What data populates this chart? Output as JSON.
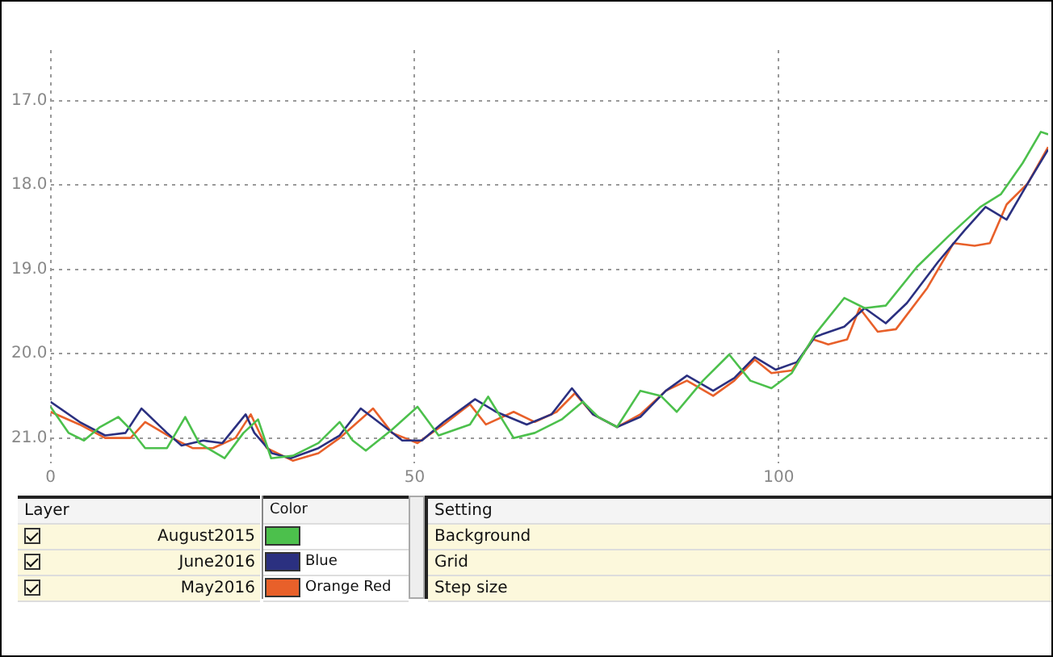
{
  "chart_data": {
    "type": "line",
    "xlim": [
      0,
      137
    ],
    "xticks": [
      0,
      50,
      100
    ],
    "ylim": [
      21.3,
      16.4
    ],
    "yticks": [
      {
        "value": 17,
        "label": "17.0"
      },
      {
        "value": 18,
        "label": "18.0"
      },
      {
        "value": 19,
        "label": "19.0"
      },
      {
        "value": 20,
        "label": "20.0"
      },
      {
        "value": 21,
        "label": "21.0"
      }
    ],
    "grid": true,
    "legend": "bottom",
    "marker": "none",
    "line_style": "solid",
    "annotations": [
      "Layer",
      "Color",
      "Setting",
      "Blue",
      "Orange Red",
      "Background",
      "Grid",
      "Step size"
    ],
    "series": [
      {
        "name": "August2015",
        "color": "#4cc04c",
        "x": [
          0,
          2.5,
          4.6,
          6.8,
          9.3,
          11,
          13,
          16,
          18.5,
          20.4,
          23.9,
          26.5,
          28.5,
          30.3,
          33.3,
          36.8,
          39.7,
          41.5,
          43.3,
          46.9,
          50.4,
          53.3,
          57.6,
          60.1,
          63.6,
          66.5,
          70.2,
          73.1,
          75.2,
          77.8,
          81,
          83.8,
          86,
          89.6,
          93.2,
          96.1,
          99,
          101.8,
          105,
          109,
          111.8,
          114.7,
          119,
          123.4,
          127.7,
          130.5,
          133.5,
          136,
          137
        ],
        "values": [
          20.63,
          20.94,
          21.03,
          20.87,
          20.75,
          20.9,
          21.12,
          21.12,
          20.75,
          21.06,
          21.24,
          20.94,
          20.78,
          21.24,
          21.21,
          21.06,
          20.81,
          21.03,
          21.15,
          20.9,
          20.63,
          20.97,
          20.84,
          20.51,
          21.0,
          20.94,
          20.78,
          20.57,
          20.75,
          20.87,
          20.44,
          20.5,
          20.69,
          20.32,
          20.01,
          20.32,
          20.41,
          20.23,
          19.77,
          19.34,
          19.46,
          19.43,
          18.97,
          18.6,
          18.26,
          18.11,
          17.74,
          17.37,
          17.4
        ]
      },
      {
        "name": "June2016",
        "color": "#2b3080",
        "x": [
          0,
          4,
          7.5,
          10.3,
          12.5,
          16,
          18,
          21,
          23.6,
          26.8,
          28,
          30.4,
          33,
          36.8,
          39.7,
          42.6,
          45.5,
          48.3,
          51,
          54,
          58.3,
          61.2,
          65.4,
          68.8,
          71.6,
          74.5,
          77.8,
          81,
          84.5,
          87.4,
          91,
          93.9,
          96.7,
          99.6,
          102.5,
          105,
          109,
          111.8,
          114.7,
          117.6,
          121.9,
          125.5,
          128.4,
          131.3,
          134.2,
          137
        ],
        "values": [
          20.57,
          20.81,
          20.97,
          20.94,
          20.65,
          20.94,
          21.09,
          21.03,
          21.06,
          20.72,
          20.94,
          21.18,
          21.24,
          21.12,
          20.97,
          20.65,
          20.84,
          21.03,
          21.03,
          20.81,
          20.54,
          20.69,
          20.84,
          20.72,
          20.41,
          20.72,
          20.87,
          20.75,
          20.44,
          20.26,
          20.44,
          20.29,
          20.04,
          20.19,
          20.1,
          19.8,
          19.68,
          19.46,
          19.64,
          19.4,
          18.91,
          18.54,
          18.26,
          18.41,
          17.98,
          17.58
        ]
      },
      {
        "name": "May2016",
        "color": "#e8602a",
        "x": [
          0,
          4,
          7.5,
          11,
          13,
          16.7,
          19.5,
          22.3,
          25.4,
          27.5,
          29.7,
          33.3,
          36.8,
          39.7,
          44.3,
          46.9,
          50.4,
          54,
          57.6,
          59.8,
          63.6,
          66.5,
          69.5,
          72,
          74.5,
          77.8,
          81,
          84.5,
          87.4,
          91,
          93.9,
          96.7,
          99,
          101.8,
          104.7,
          106.8,
          109.4,
          111.1,
          113.6,
          116.1,
          120.4,
          124,
          126.9,
          129,
          131.3,
          134.2,
          137
        ],
        "values": [
          20.69,
          20.84,
          21.0,
          21.0,
          20.81,
          21.0,
          21.12,
          21.12,
          21.0,
          20.72,
          21.12,
          21.27,
          21.18,
          21.0,
          20.65,
          20.94,
          21.06,
          20.84,
          20.6,
          20.84,
          20.69,
          20.81,
          20.69,
          20.47,
          20.72,
          20.87,
          20.72,
          20.44,
          20.32,
          20.5,
          20.32,
          20.07,
          20.23,
          20.2,
          19.83,
          19.89,
          19.83,
          19.46,
          19.74,
          19.71,
          19.22,
          18.69,
          18.72,
          18.69,
          18.23,
          17.98,
          17.55
        ]
      }
    ]
  }
}
